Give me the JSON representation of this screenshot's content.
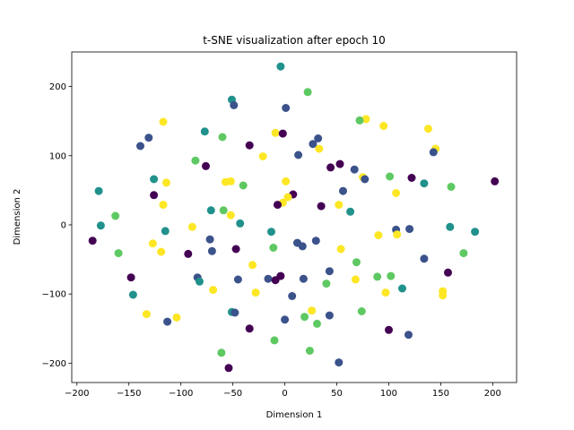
{
  "chart_data": {
    "type": "scatter",
    "title": "t-SNE visualization after epoch 10",
    "xlabel": "Dimension 1",
    "ylabel": "Dimension 2",
    "xlim": [
      -205,
      223
    ],
    "ylim": [
      -228,
      250
    ],
    "xticks": [
      -200,
      -150,
      -100,
      -50,
      0,
      50,
      100,
      150,
      200
    ],
    "yticks": [
      -200,
      -100,
      0,
      100,
      200
    ],
    "grid": false,
    "colormap": [
      "#440154",
      "#3b528b",
      "#21918c",
      "#5ec962",
      "#fde725"
    ],
    "points": [
      {
        "x": -4,
        "y": 229,
        "c": 2
      },
      {
        "x": 22,
        "y": 192,
        "c": 3
      },
      {
        "x": -51,
        "y": 181,
        "c": 2
      },
      {
        "x": -49,
        "y": 173,
        "c": 1
      },
      {
        "x": 1,
        "y": 169,
        "c": 1
      },
      {
        "x": -117,
        "y": 149,
        "c": 4
      },
      {
        "x": 78,
        "y": 153,
        "c": 4
      },
      {
        "x": 72,
        "y": 151,
        "c": 3
      },
      {
        "x": 95,
        "y": 143,
        "c": 4
      },
      {
        "x": 138,
        "y": 139,
        "c": 5
      },
      {
        "x": -77,
        "y": 135,
        "c": 2
      },
      {
        "x": -9,
        "y": 133,
        "c": 4
      },
      {
        "x": -2,
        "y": 132,
        "c": 0
      },
      {
        "x": -131,
        "y": 126,
        "c": 1
      },
      {
        "x": -60,
        "y": 127,
        "c": 3
      },
      {
        "x": 32,
        "y": 125,
        "c": 1
      },
      {
        "x": 27,
        "y": 117,
        "c": 1
      },
      {
        "x": -139,
        "y": 114,
        "c": 1
      },
      {
        "x": -34,
        "y": 115,
        "c": 0
      },
      {
        "x": 145,
        "y": 110,
        "c": 4
      },
      {
        "x": 33,
        "y": 110,
        "c": 4
      },
      {
        "x": 143,
        "y": 105,
        "c": 1
      },
      {
        "x": 13,
        "y": 101,
        "c": 1
      },
      {
        "x": -21,
        "y": 99,
        "c": 5
      },
      {
        "x": -86,
        "y": 93,
        "c": 3
      },
      {
        "x": 53,
        "y": 88,
        "c": 0
      },
      {
        "x": -76,
        "y": 85,
        "c": 0
      },
      {
        "x": 44,
        "y": 83,
        "c": 0
      },
      {
        "x": 67,
        "y": 80,
        "c": 1
      },
      {
        "x": 75,
        "y": 69,
        "c": 4
      },
      {
        "x": 101,
        "y": 70,
        "c": 3
      },
      {
        "x": 122,
        "y": 68,
        "c": 0
      },
      {
        "x": 77,
        "y": 66,
        "c": 1
      },
      {
        "x": 202,
        "y": 63,
        "c": 0
      },
      {
        "x": -126,
        "y": 66,
        "c": 2
      },
      {
        "x": -57,
        "y": 62,
        "c": 5
      },
      {
        "x": -52,
        "y": 63,
        "c": 5
      },
      {
        "x": 1,
        "y": 63,
        "c": 4
      },
      {
        "x": -114,
        "y": 61,
        "c": 5
      },
      {
        "x": 134,
        "y": 60,
        "c": 2
      },
      {
        "x": -40,
        "y": 57,
        "c": 3
      },
      {
        "x": 160,
        "y": 55,
        "c": 3
      },
      {
        "x": -179,
        "y": 49,
        "c": 2
      },
      {
        "x": 56,
        "y": 49,
        "c": 1
      },
      {
        "x": 107,
        "y": 46,
        "c": 5
      },
      {
        "x": -126,
        "y": 43,
        "c": 0
      },
      {
        "x": 8,
        "y": 44,
        "c": 0
      },
      {
        "x": 3,
        "y": 40,
        "c": 4
      },
      {
        "x": -2,
        "y": 32,
        "c": 4
      },
      {
        "x": -7,
        "y": 29,
        "c": 0
      },
      {
        "x": -117,
        "y": 29,
        "c": 4
      },
      {
        "x": 35,
        "y": 27,
        "c": 0
      },
      {
        "x": 52,
        "y": 29,
        "c": 4
      },
      {
        "x": -71,
        "y": 21,
        "c": 2
      },
      {
        "x": -59,
        "y": 21,
        "c": 3
      },
      {
        "x": 63,
        "y": 19,
        "c": 2
      },
      {
        "x": -52,
        "y": 14,
        "c": 5
      },
      {
        "x": -163,
        "y": 13,
        "c": 3
      },
      {
        "x": -43,
        "y": 2,
        "c": 2
      },
      {
        "x": -177,
        "y": -1,
        "c": 2
      },
      {
        "x": 159,
        "y": -3,
        "c": 2
      },
      {
        "x": -89,
        "y": -3,
        "c": 5
      },
      {
        "x": -115,
        "y": -9,
        "c": 2
      },
      {
        "x": 107,
        "y": -7,
        "c": 1
      },
      {
        "x": 120,
        "y": -6,
        "c": 1
      },
      {
        "x": 183,
        "y": -10,
        "c": 2
      },
      {
        "x": -13,
        "y": -10,
        "c": 2
      },
      {
        "x": 108,
        "y": -14,
        "c": 5
      },
      {
        "x": 90,
        "y": -15,
        "c": 4
      },
      {
        "x": -185,
        "y": -23,
        "c": 0
      },
      {
        "x": -72,
        "y": -21,
        "c": 1
      },
      {
        "x": -127,
        "y": -27,
        "c": 4
      },
      {
        "x": 12,
        "y": -26,
        "c": 1
      },
      {
        "x": 17,
        "y": -31,
        "c": 1
      },
      {
        "x": -11,
        "y": -33,
        "c": 3
      },
      {
        "x": 30,
        "y": -23,
        "c": 1
      },
      {
        "x": -47,
        "y": -35,
        "c": 0
      },
      {
        "x": -70,
        "y": -38,
        "c": 1
      },
      {
        "x": 54,
        "y": -35,
        "c": 4
      },
      {
        "x": -160,
        "y": -41,
        "c": 3
      },
      {
        "x": -119,
        "y": -39,
        "c": 5
      },
      {
        "x": 172,
        "y": -41,
        "c": 3
      },
      {
        "x": -93,
        "y": -42,
        "c": 0
      },
      {
        "x": 134,
        "y": -49,
        "c": 1
      },
      {
        "x": 69,
        "y": -54,
        "c": 3
      },
      {
        "x": -31,
        "y": -58,
        "c": 4
      },
      {
        "x": 157,
        "y": -69,
        "c": 0
      },
      {
        "x": 43,
        "y": -67,
        "c": 1
      },
      {
        "x": -148,
        "y": -76,
        "c": 0
      },
      {
        "x": -84,
        "y": -76,
        "c": 1
      },
      {
        "x": -4,
        "y": -74,
        "c": 0
      },
      {
        "x": 18,
        "y": -78,
        "c": 1
      },
      {
        "x": -16,
        "y": -78,
        "c": 1
      },
      {
        "x": -45,
        "y": -79,
        "c": 1
      },
      {
        "x": -9,
        "y": -80,
        "c": 0
      },
      {
        "x": 89,
        "y": -75,
        "c": 3
      },
      {
        "x": 102,
        "y": -74,
        "c": 3
      },
      {
        "x": 68,
        "y": -79,
        "c": 4
      },
      {
        "x": -82,
        "y": -82,
        "c": 2
      },
      {
        "x": 40,
        "y": -85,
        "c": 3
      },
      {
        "x": 113,
        "y": -92,
        "c": 2
      },
      {
        "x": -69,
        "y": -94,
        "c": 4
      },
      {
        "x": 152,
        "y": -96,
        "c": 5
      },
      {
        "x": -28,
        "y": -98,
        "c": 4
      },
      {
        "x": 97,
        "y": -98,
        "c": 4
      },
      {
        "x": 152,
        "y": -102,
        "c": 4
      },
      {
        "x": 7,
        "y": -103,
        "c": 1
      },
      {
        "x": -146,
        "y": -101,
        "c": 2
      },
      {
        "x": 26,
        "y": -124,
        "c": 4
      },
      {
        "x": 74,
        "y": -125,
        "c": 3
      },
      {
        "x": -51,
        "y": -126,
        "c": 2
      },
      {
        "x": -48,
        "y": -127,
        "c": 1
      },
      {
        "x": -133,
        "y": -129,
        "c": 4
      },
      {
        "x": 19,
        "y": -133,
        "c": 3
      },
      {
        "x": 43,
        "y": -131,
        "c": 1
      },
      {
        "x": -104,
        "y": -134,
        "c": 5
      },
      {
        "x": 0,
        "y": -137,
        "c": 1
      },
      {
        "x": -113,
        "y": -140,
        "c": 1
      },
      {
        "x": 31,
        "y": -143,
        "c": 3
      },
      {
        "x": -34,
        "y": -150,
        "c": 0
      },
      {
        "x": 100,
        "y": -152,
        "c": 0
      },
      {
        "x": 119,
        "y": -159,
        "c": 1
      },
      {
        "x": -10,
        "y": -167,
        "c": 3
      },
      {
        "x": 24,
        "y": -182,
        "c": 3
      },
      {
        "x": -61,
        "y": -185,
        "c": 3
      },
      {
        "x": 52,
        "y": -199,
        "c": 1
      },
      {
        "x": -54,
        "y": -207,
        "c": 0
      }
    ]
  }
}
